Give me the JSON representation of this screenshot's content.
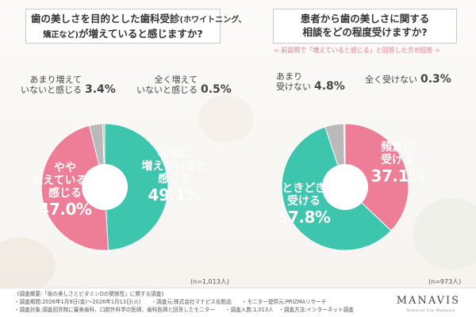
{
  "left_question": {
    "line1": "歯の美しさを目的とした歯科受診",
    "line1_small": "(ホワイトニング、",
    "line2": "矯正など)",
    "line2_rest": "が増えていると感じますか?"
  },
  "right_question": {
    "line1": "患者から歯の美しさに関する",
    "line2": "相談をどの程度受けますか?",
    "note": "= 前設問で「増えていると感じる」と回答した方が回答 ="
  },
  "chart_data": [
    {
      "type": "pie",
      "n_label": "(n=1,013人)",
      "slices": [
        {
          "label": "非常に増えていると感じる",
          "label_lines": [
            "非常に",
            "増えていると",
            "感じる"
          ],
          "value": 49.1,
          "value_label": "49.1%",
          "color": "#3ec5ae"
        },
        {
          "label": "やや増えていると感じる",
          "label_lines": [
            "やや",
            "増えていると",
            "感じる"
          ],
          "value": 47.0,
          "value_label": "47.0%",
          "color": "#ee7d97"
        },
        {
          "label": "あまり増えていないと感じる",
          "label_lines": [
            "あまり増えて",
            "いないと感じる"
          ],
          "value": 3.4,
          "value_label": "3.4%",
          "color": "#b9b9b9"
        },
        {
          "label": "全く増えていないと感じる",
          "label_lines": [
            "全く増えて",
            "いないと感じる"
          ],
          "value": 0.5,
          "value_label": "0.5%",
          "color": "#b9b9b9"
        }
      ]
    },
    {
      "type": "pie",
      "n_label": "(n=973人)",
      "slices": [
        {
          "label": "頻繁に受ける",
          "label_lines": [
            "頻繁に",
            "受ける"
          ],
          "value": 37.1,
          "value_label": "37.1%",
          "color": "#ee7d97"
        },
        {
          "label": "ときどき受ける",
          "label_lines": [
            "ときどき",
            "受ける"
          ],
          "value": 57.8,
          "value_label": "57.8%",
          "color": "#3ec5ae"
        },
        {
          "label": "あまり受けない",
          "label_lines": [
            "あまり",
            "受けない"
          ],
          "value": 4.8,
          "value_label": "4.8%",
          "color": "#b9b9b9"
        },
        {
          "label": "全く受けない",
          "label_lines": [
            "全く受けない"
          ],
          "value": 0.3,
          "value_label": "0.3%",
          "color": "#b9b9b9"
        }
      ]
    }
  ],
  "footer": {
    "line1": "《調査概要:「歯の美しさとビタミンDの関係性」に関する調査》",
    "line2": "・調査期間:2026年1月9日(金)〜2026年1月13日(火)　　・調査元:株式会社マナビス化粧品　　・モニター提供元:PRIZMAリサーチ",
    "line3": "・調査対象:調査回答時に審美歯科、口腔外科学の医師、歯科医師と回答したモニター　　・調査人数:1,013人　・調査方法:インターネット調査"
  },
  "brand": {
    "name": "MANAVIS",
    "tagline": "Natural Via Manavis"
  }
}
